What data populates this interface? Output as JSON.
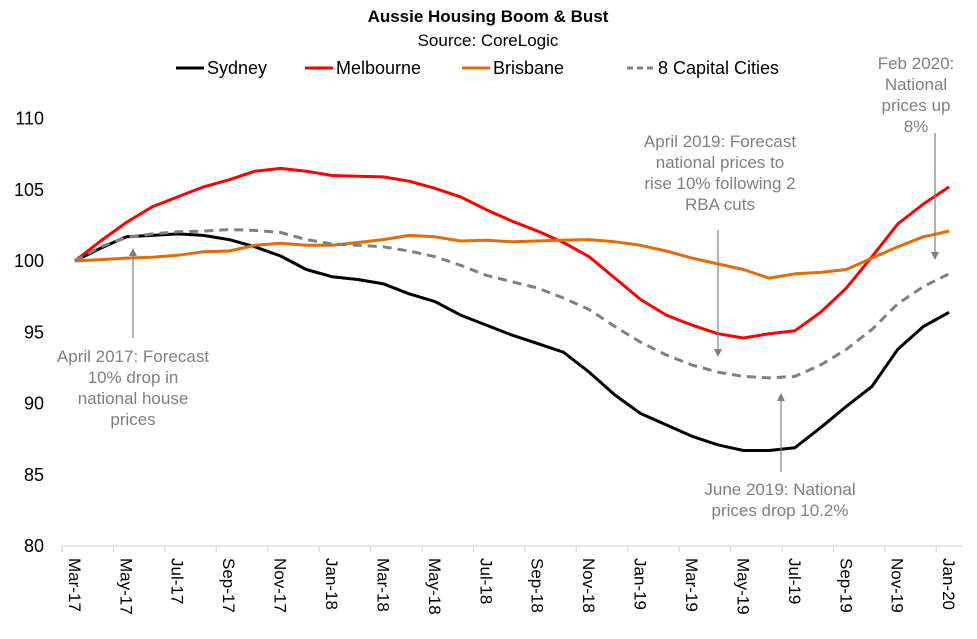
{
  "chart_data": {
    "type": "line",
    "title": "Aussie Housing Boom & Bust",
    "subtitle": "Source: CoreLogic",
    "xlabel": "",
    "ylabel": "",
    "ylim": [
      80,
      110
    ],
    "yticks": [
      80,
      85,
      90,
      95,
      100,
      105,
      110
    ],
    "grid": false,
    "legend_position": "top",
    "x": [
      "Mar-17",
      "Apr-17",
      "May-17",
      "Jun-17",
      "Jul-17",
      "Aug-17",
      "Sep-17",
      "Oct-17",
      "Nov-17",
      "Dec-17",
      "Jan-18",
      "Feb-18",
      "Mar-18",
      "Apr-18",
      "May-18",
      "Jun-18",
      "Jul-18",
      "Aug-18",
      "Sep-18",
      "Oct-18",
      "Nov-18",
      "Dec-18",
      "Jan-19",
      "Feb-19",
      "Mar-19",
      "Apr-19",
      "May-19",
      "Jun-19",
      "Jul-19",
      "Aug-19",
      "Sep-19",
      "Oct-19",
      "Nov-19",
      "Dec-19",
      "Jan-20"
    ],
    "xtick_labels": [
      "Mar-17",
      "May-17",
      "Jul-17",
      "Sep-17",
      "Nov-17",
      "Jan-18",
      "Mar-18",
      "May-18",
      "Jul-18",
      "Sep-18",
      "Nov-18",
      "Jan-19",
      "Mar-19",
      "May-19",
      "Jul-19",
      "Sep-19",
      "Nov-19",
      "Jan-20"
    ],
    "series": [
      {
        "name": "Sydney",
        "color": "#000000",
        "dashed": false,
        "values": [
          100,
          100.9,
          101.7,
          101.8,
          101.9,
          101.8,
          101.5,
          101.0,
          100.35,
          99.4,
          98.9,
          98.7,
          98.4,
          97.7,
          97.15,
          96.2,
          95.5,
          94.8,
          94.2,
          93.6,
          92.2,
          90.6,
          89.3,
          88.5,
          87.7,
          87.1,
          86.7,
          86.7,
          86.9,
          88.3,
          89.8,
          91.2,
          93.8,
          95.4,
          96.4
        ]
      },
      {
        "name": "Melbourne",
        "color": "#ff0000",
        "dashed": false,
        "values": [
          100,
          101.4,
          102.7,
          103.8,
          104.5,
          105.2,
          105.7,
          106.3,
          106.5,
          106.3,
          106.0,
          105.95,
          105.9,
          105.6,
          105.1,
          104.5,
          103.6,
          102.8,
          102.1,
          101.3,
          100.3,
          98.8,
          97.3,
          96.2,
          95.5,
          94.9,
          94.6,
          94.9,
          95.1,
          96.4,
          98.1,
          100.3,
          102.6,
          104.0,
          105.2
        ]
      },
      {
        "name": "Brisbane",
        "color": "#e36c0a",
        "dashed": false,
        "values": [
          100,
          100.1,
          100.2,
          100.26,
          100.4,
          100.65,
          100.7,
          101.1,
          101.25,
          101.1,
          101.1,
          101.3,
          101.5,
          101.8,
          101.7,
          101.4,
          101.45,
          101.35,
          101.4,
          101.47,
          101.5,
          101.35,
          101.1,
          100.7,
          100.2,
          99.8,
          99.4,
          98.8,
          99.1,
          99.2,
          99.4,
          100.2,
          101.0,
          101.7,
          102.1
        ]
      },
      {
        "name": "8 Capital Cities",
        "color": "#808080",
        "dashed": true,
        "values": [
          100,
          101.0,
          101.65,
          101.9,
          102.05,
          102.1,
          102.2,
          102.15,
          102.0,
          101.5,
          101.2,
          101.1,
          101.0,
          100.7,
          100.3,
          99.7,
          99.0,
          98.55,
          98.1,
          97.4,
          96.6,
          95.4,
          94.3,
          93.4,
          92.7,
          92.2,
          91.9,
          91.8,
          91.9,
          92.7,
          93.8,
          95.2,
          97.0,
          98.2,
          99.1
        ]
      }
    ],
    "annotations": [
      {
        "lines": [
          "April 2017: Forecast",
          "10% drop in",
          "national house",
          "prices"
        ]
      },
      {
        "lines": [
          "April 2019: Forecast",
          "national  prices to",
          "rise 10% following 2",
          "RBA cuts"
        ]
      },
      {
        "lines": [
          "June 2019: National",
          "prices drop 10.2%"
        ]
      },
      {
        "lines": [
          "Feb 2020:",
          "National",
          "prices up",
          "8%"
        ]
      }
    ],
    "annotation_color": "#7f7f7f"
  }
}
